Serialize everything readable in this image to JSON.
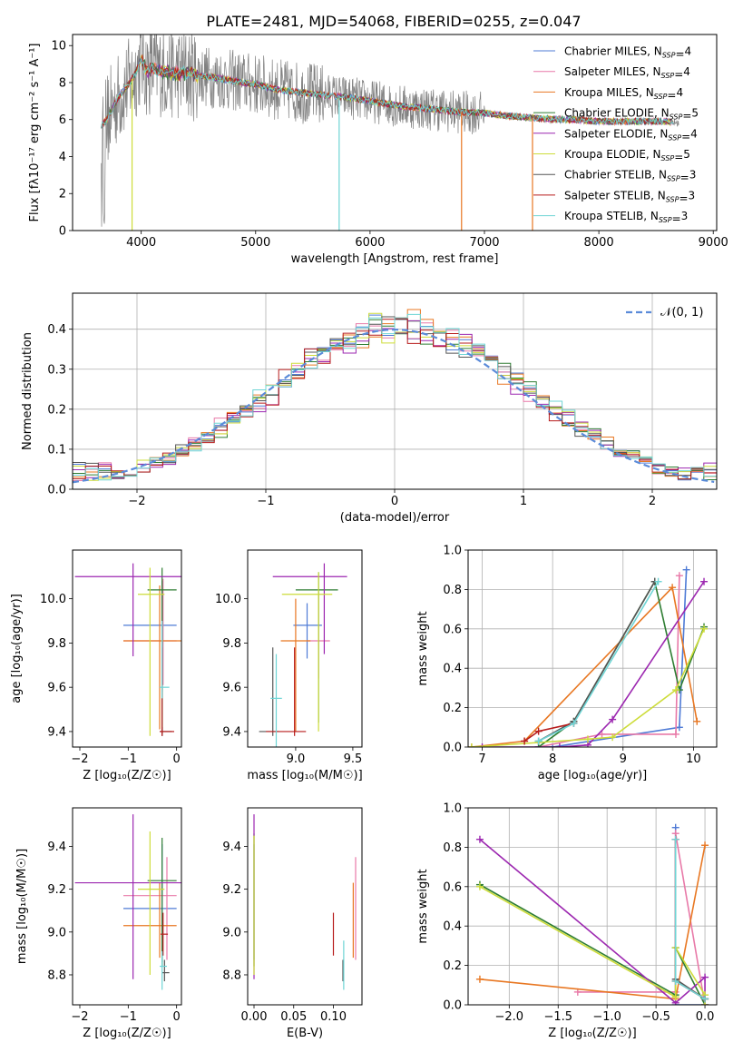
{
  "figure_title": "PLATE=2481, MJD=54068, FIBERID=0255, z=0.047",
  "colors": {
    "Chabrier MILES": "#4f7bd6",
    "Salpeter MILES": "#e879a8",
    "Kroupa MILES": "#e87722",
    "Chabrier ELODIE": "#2e7d32",
    "Salpeter ELODIE": "#9c27b0",
    "Kroupa ELODIE": "#cddc39",
    "Chabrier STELIB": "#555555",
    "Salpeter STELIB": "#b71c1c",
    "Kroupa STELIB": "#6fd5d5",
    "data": "#808080",
    "normal": "#5b8bd9"
  },
  "chart_data": [
    {
      "id": "spectrum",
      "type": "line",
      "title": "PLATE=2481, MJD=54068, FIBERID=0255, z=0.047",
      "xlabel": "wavelength [Angstrom, rest frame]",
      "ylabel": "Flux [fλ10⁻¹⁷ erg cm⁻² s⁻¹ A⁻¹]",
      "xlim": [
        3400,
        9030
      ],
      "ylim": [
        0,
        10.6
      ],
      "xticks": [
        4000,
        5000,
        6000,
        7000,
        8000,
        9000
      ],
      "yticks": [
        0,
        2,
        4,
        6,
        8,
        10
      ],
      "legend": [
        {
          "label": "Chabrier MILES",
          "nssp": "4"
        },
        {
          "label": "Salpeter MILES",
          "nssp": "4"
        },
        {
          "label": "Kroupa MILES",
          "nssp": "4"
        },
        {
          "label": "Chabrier ELODIE",
          "nssp": "5"
        },
        {
          "label": "Salpeter ELODIE",
          "nssp": "4"
        },
        {
          "label": "Kroupa ELODIE",
          "nssp": "5"
        },
        {
          "label": "Chabrier STELIB",
          "nssp": "3"
        },
        {
          "label": "Salpeter STELIB",
          "nssp": "3"
        },
        {
          "label": "Kroupa STELIB",
          "nssp": "3"
        }
      ],
      "legend_loc": "upper right",
      "continuum": {
        "wavelength": [
          3650,
          3700,
          3800,
          3900,
          3950,
          4000,
          4050,
          4100,
          4200,
          4300,
          4400,
          4500,
          4700,
          5000,
          5200,
          5500,
          5800,
          6000,
          6300,
          6500,
          6800,
          7000,
          7200,
          7400,
          7600,
          7800,
          8000,
          8200,
          8400,
          8600,
          8700
        ],
        "flux": [
          5.7,
          6.0,
          7.2,
          8.0,
          8.5,
          9.3,
          8.6,
          8.8,
          8.6,
          8.5,
          8.5,
          8.4,
          8.2,
          7.9,
          7.6,
          7.4,
          7.2,
          7.0,
          6.7,
          6.6,
          6.4,
          6.35,
          6.2,
          6.1,
          6.0,
          6.0,
          5.9,
          5.9,
          5.9,
          5.9,
          5.8
        ]
      },
      "data_noise_amplitude": 1.7,
      "model_dropouts": [
        {
          "wavelength": 3920,
          "model": "Kroupa ELODIE"
        },
        {
          "wavelength": 5730,
          "model": "Kroupa STELIB"
        },
        {
          "wavelength": 6800,
          "model": "Kroupa MILES"
        },
        {
          "wavelength": 7420,
          "model": "Kroupa MILES"
        }
      ]
    },
    {
      "id": "residual-hist",
      "type": "line",
      "xlabel": "(data-model)/error",
      "ylabel": "Normed distribution",
      "xlim": [
        -2.5,
        2.5
      ],
      "ylim": [
        0,
        0.49
      ],
      "xticks": [
        -2,
        -1,
        0,
        1,
        2
      ],
      "yticks": [
        0.0,
        0.1,
        0.2,
        0.3,
        0.4
      ],
      "bin_width": 0.1,
      "bin_start": -2.5,
      "normal_label": "𝒩(0, 1)",
      "legend_loc": "upper right",
      "grid": true
    },
    {
      "id": "age-vs-Z",
      "type": "scatter",
      "xlabel": "Z [log₁₀(Z/Z☉)]",
      "ylabel": "age  [log₁₀(age/yr)]",
      "xlim": [
        -2.15,
        0.1
      ],
      "ylim": [
        9.33,
        10.22
      ],
      "xticks": [
        -2,
        -1,
        0
      ],
      "yticks": [
        9.4,
        9.6,
        9.8,
        10.0
      ],
      "points": [
        {
          "model": "Chabrier MILES",
          "x": -0.3,
          "xerr": [
            0.8,
            0.3
          ],
          "y": 9.88,
          "yerr": [
            0.3,
            0.2
          ]
        },
        {
          "model": "Salpeter MILES",
          "x": -0.28,
          "xerr": [
            0.82,
            0.28
          ],
          "y": 9.81,
          "yerr": [
            0.2,
            0.28
          ]
        },
        {
          "model": "Kroupa MILES",
          "x": -0.35,
          "xerr": [
            0.75,
            0.45
          ],
          "y": 9.81,
          "yerr": [
            0.4,
            0.25
          ]
        },
        {
          "model": "Chabrier ELODIE",
          "x": -0.3,
          "xerr": [
            0.3,
            0.3
          ],
          "y": 10.04,
          "yerr": [
            0.65,
            0.1
          ]
        },
        {
          "model": "Salpeter ELODIE",
          "x": -0.9,
          "xerr": [
            1.2,
            1.9
          ],
          "y": 10.1,
          "yerr": [
            0.36,
            0.06
          ]
        },
        {
          "model": "Kroupa ELODIE",
          "x": -0.55,
          "xerr": [
            0.25,
            0.3
          ],
          "y": 10.02,
          "yerr": [
            0.64,
            0.12
          ]
        },
        {
          "model": "Chabrier STELIB",
          "x": -0.3,
          "xerr": [
            0.05,
            0.2
          ],
          "y": 9.4,
          "yerr": [
            0.02,
            0.02
          ]
        },
        {
          "model": "Salpeter STELIB",
          "x": -0.3,
          "xerr": [
            0.05,
            0.25
          ],
          "y": 9.4,
          "yerr": [
            0.02,
            0.38
          ]
        },
        {
          "model": "Kroupa STELIB",
          "x": -0.3,
          "xerr": [
            0.05,
            0.15
          ],
          "y": 9.6,
          "yerr": [
            0.05,
            0.3
          ]
        }
      ]
    },
    {
      "id": "age-vs-mass",
      "type": "scatter",
      "xlabel": "mass [log₁₀(M/M☉)]",
      "ylabel": "",
      "xlim": [
        8.58,
        9.58
      ],
      "ylim": [
        9.33,
        10.22
      ],
      "xticks": [
        9.0,
        9.5
      ],
      "yticks": [
        9.4,
        9.6,
        9.8,
        10.0
      ],
      "points": [
        {
          "model": "Chabrier MILES",
          "x": 9.1,
          "xerr": [
            0.12,
            0.13
          ],
          "y": 9.88,
          "yerr": [
            0.15,
            0.1
          ]
        },
        {
          "model": "Salpeter MILES",
          "x": 9.2,
          "xerr": [
            0.1,
            0.1
          ],
          "y": 9.81,
          "yerr": [
            0.17,
            0.22
          ]
        },
        {
          "model": "Kroupa MILES",
          "x": 9.0,
          "xerr": [
            0.13,
            0.13
          ],
          "y": 9.81,
          "yerr": [
            0.41,
            0.19
          ]
        },
        {
          "model": "Chabrier ELODIE",
          "x": 9.2,
          "xerr": [
            0.2,
            0.17
          ],
          "y": 10.04,
          "yerr": [
            0.6,
            0.08
          ]
        },
        {
          "model": "Salpeter ELODIE",
          "x": 9.25,
          "xerr": [
            0.45,
            0.2
          ],
          "y": 10.1,
          "yerr": [
            0.35,
            0.06
          ]
        },
        {
          "model": "Kroupa ELODIE",
          "x": 9.2,
          "xerr": [
            0.32,
            0.12
          ],
          "y": 10.02,
          "yerr": [
            0.62,
            0.1
          ]
        },
        {
          "model": "Chabrier STELIB",
          "x": 8.8,
          "xerr": [
            0.12,
            0.05
          ],
          "y": 9.4,
          "yerr": [
            0.02,
            0.38
          ]
        },
        {
          "model": "Salpeter STELIB",
          "x": 8.99,
          "xerr": [
            0.25,
            0.1
          ],
          "y": 9.4,
          "yerr": [
            0.02,
            0.38
          ]
        },
        {
          "model": "Kroupa STELIB",
          "x": 8.83,
          "xerr": [
            0.05,
            0.05
          ],
          "y": 9.55,
          "yerr": [
            0.25,
            0.2
          ]
        }
      ]
    },
    {
      "id": "mass-weight-vs-age",
      "type": "line",
      "xlabel": "age  [log₁₀(age/yr)]",
      "ylabel": "mass weight",
      "xlim": [
        6.8,
        10.33
      ],
      "ylim": [
        0,
        1
      ],
      "xticks": [
        7,
        8,
        9,
        10
      ],
      "yticks": [
        0.0,
        0.2,
        0.4,
        0.6,
        0.8,
        1.0
      ],
      "grid": true,
      "series": [
        {
          "model": "Chabrier MILES",
          "x": [
            7.8,
            8.0,
            9.8,
            9.9
          ],
          "y": [
            0.0,
            0.0,
            0.1,
            0.9
          ]
        },
        {
          "model": "Salpeter MILES",
          "x": [
            7.8,
            8.7,
            9.75,
            9.8
          ],
          "y": [
            0.0,
            0.065,
            0.065,
            0.87
          ]
        },
        {
          "model": "Kroupa MILES",
          "x": [
            6.85,
            7.6,
            9.7,
            10.05
          ],
          "y": [
            0.0,
            0.03,
            0.81,
            0.13
          ]
        },
        {
          "model": "Chabrier ELODIE",
          "x": [
            7.8,
            8.3,
            9.45,
            9.8,
            10.15
          ],
          "y": [
            0.0,
            0.13,
            0.84,
            0.29,
            0.61
          ]
        },
        {
          "model": "Salpeter ELODIE",
          "x": [
            7.0,
            8.1,
            8.5,
            8.85,
            10.15
          ],
          "y": [
            0.0,
            0.0,
            0.01,
            0.14,
            0.84
          ]
        },
        {
          "model": "Kroupa ELODIE",
          "x": [
            6.85,
            8.5,
            8.85,
            9.75,
            10.15
          ],
          "y": [
            0.0,
            0.04,
            0.05,
            0.29,
            0.6
          ]
        },
        {
          "model": "Chabrier STELIB",
          "x": [
            7.8,
            8.3,
            9.45
          ],
          "y": [
            0.03,
            0.13,
            0.84
          ]
        },
        {
          "model": "Salpeter STELIB",
          "x": [
            7.6,
            7.8,
            8.3
          ],
          "y": [
            0.03,
            0.08,
            0.12
          ]
        },
        {
          "model": "Kroupa STELIB",
          "x": [
            7.8,
            8.3,
            9.5
          ],
          "y": [
            0.03,
            0.12,
            0.84
          ]
        }
      ]
    },
    {
      "id": "mass-vs-Z",
      "type": "scatter",
      "xlabel": "Z [log₁₀(Z/Z☉)]",
      "ylabel": "mass [log₁₀(M/M☉)]",
      "xlim": [
        -2.15,
        0.1
      ],
      "ylim": [
        8.66,
        9.58
      ],
      "xticks": [
        -2,
        -1,
        0
      ],
      "yticks": [
        8.8,
        9.0,
        9.2,
        9.4
      ],
      "points": [
        {
          "model": "Chabrier MILES",
          "x": -0.3,
          "xerr": [
            0.8,
            0.3
          ],
          "y": 9.11,
          "yerr": [
            0.25,
            0.3
          ]
        },
        {
          "model": "Salpeter MILES",
          "x": -0.2,
          "xerr": [
            0.9,
            0.2
          ],
          "y": 9.17,
          "yerr": [
            0.3,
            0.18
          ]
        },
        {
          "model": "Kroupa MILES",
          "x": -0.35,
          "xerr": [
            0.75,
            0.35
          ],
          "y": 9.03,
          "yerr": [
            0.15,
            0.2
          ]
        },
        {
          "model": "Chabrier ELODIE",
          "x": -0.3,
          "xerr": [
            0.3,
            0.3
          ],
          "y": 9.24,
          "yerr": [
            0.4,
            0.2
          ]
        },
        {
          "model": "Salpeter ELODIE",
          "x": -0.9,
          "xerr": [
            1.2,
            1.9
          ],
          "y": 9.23,
          "yerr": [
            0.45,
            0.32
          ]
        },
        {
          "model": "Kroupa ELODIE",
          "x": -0.55,
          "xerr": [
            0.25,
            0.3
          ],
          "y": 9.2,
          "yerr": [
            0.4,
            0.27
          ]
        },
        {
          "model": "Chabrier STELIB",
          "x": -0.25,
          "xerr": [
            0.05,
            0.1
          ],
          "y": 8.81,
          "yerr": [
            0.04,
            0.06
          ]
        },
        {
          "model": "Salpeter STELIB",
          "x": -0.28,
          "xerr": [
            0.05,
            0.1
          ],
          "y": 8.99,
          "yerr": [
            0.1,
            0.1
          ]
        },
        {
          "model": "Kroupa STELIB",
          "x": -0.3,
          "xerr": [
            0.05,
            0.1
          ],
          "y": 8.84,
          "yerr": [
            0.11,
            0.07
          ]
        }
      ]
    },
    {
      "id": "mass-vs-ebv",
      "type": "scatter",
      "xlabel": "E(B-V)",
      "ylabel": "",
      "xlim": [
        -0.008,
        0.136
      ],
      "ylim": [
        8.66,
        9.58
      ],
      "xticks": [
        0.0,
        0.05,
        0.1
      ],
      "yticks": [
        8.8,
        9.0,
        9.2,
        9.4
      ],
      "points": [
        {
          "model": "Chabrier MILES",
          "x": 0.0,
          "xerr": [
            0,
            0
          ],
          "y": 9.11,
          "yerr": [
            0.24,
            0.3
          ]
        },
        {
          "model": "Salpeter MILES",
          "x": 0.128,
          "xerr": [
            0,
            0
          ],
          "y": 9.11,
          "yerr": [
            0.24,
            0.24
          ]
        },
        {
          "model": "Kroupa MILES",
          "x": 0.125,
          "xerr": [
            0,
            0
          ],
          "y": 9.03,
          "yerr": [
            0.15,
            0.2
          ]
        },
        {
          "model": "Chabrier ELODIE",
          "x": 0.0,
          "xerr": [
            0,
            0
          ],
          "y": 9.24,
          "yerr": [
            0.4,
            0.22
          ]
        },
        {
          "model": "Salpeter ELODIE",
          "x": 0.0,
          "xerr": [
            0,
            0
          ],
          "y": 9.23,
          "yerr": [
            0.45,
            0.32
          ]
        },
        {
          "model": "Kroupa ELODIE",
          "x": 0.0,
          "xerr": [
            0,
            0
          ],
          "y": 9.2,
          "yerr": [
            0.4,
            0.25
          ]
        },
        {
          "model": "Chabrier STELIB",
          "x": 0.112,
          "xerr": [
            0,
            0
          ],
          "y": 8.81,
          "yerr": [
            0.04,
            0.06
          ]
        },
        {
          "model": "Salpeter STELIB",
          "x": 0.1,
          "xerr": [
            0,
            0
          ],
          "y": 8.99,
          "yerr": [
            0.1,
            0.1
          ]
        },
        {
          "model": "Kroupa STELIB",
          "x": 0.113,
          "xerr": [
            0,
            0
          ],
          "y": 8.84,
          "yerr": [
            0.11,
            0.12
          ]
        }
      ]
    },
    {
      "id": "mass-weight-vs-Z",
      "type": "line",
      "xlabel": "Z [log₁₀(Z/Z☉)]",
      "ylabel": "mass weight",
      "xlim": [
        -2.42,
        0.12
      ],
      "ylim": [
        0,
        1
      ],
      "xticks": [
        -2.0,
        -1.5,
        -1.0,
        -0.5,
        0.0
      ],
      "yticks": [
        0.0,
        0.2,
        0.4,
        0.6,
        0.8,
        1.0
      ],
      "grid": true,
      "series": [
        {
          "model": "Chabrier MILES",
          "x": [
            -0.3,
            -0.3,
            0.0
          ],
          "y": [
            0.9,
            0.0,
            0.0
          ]
        },
        {
          "model": "Salpeter MILES",
          "x": [
            -1.3,
            -0.3,
            -0.3,
            0.0
          ],
          "y": [
            0.065,
            0.065,
            0.87,
            0.0
          ]
        },
        {
          "model": "Kroupa MILES",
          "x": [
            -2.3,
            -0.3,
            0.0
          ],
          "y": [
            0.13,
            0.03,
            0.81
          ]
        },
        {
          "model": "Chabrier ELODIE",
          "x": [
            -2.3,
            -0.3,
            -0.3,
            0.0,
            0.0
          ],
          "y": [
            0.61,
            0.05,
            0.29,
            0.0,
            0.03
          ]
        },
        {
          "model": "Salpeter ELODIE",
          "x": [
            -2.3,
            -0.3,
            0.0,
            0.0
          ],
          "y": [
            0.84,
            0.01,
            0.14,
            0.0
          ]
        },
        {
          "model": "Kroupa ELODIE",
          "x": [
            -2.3,
            -0.3,
            -0.3,
            0.0,
            0.0
          ],
          "y": [
            0.6,
            0.04,
            0.29,
            0.05,
            0.0
          ]
        },
        {
          "model": "Chabrier STELIB",
          "x": [
            -0.3,
            -0.3,
            0.0
          ],
          "y": [
            0.84,
            0.13,
            0.03
          ]
        },
        {
          "model": "Salpeter STELIB",
          "x": [
            -0.3,
            -0.3,
            0.0
          ],
          "y": [
            0.84,
            0.12,
            0.03
          ]
        },
        {
          "model": "Kroupa STELIB",
          "x": [
            -0.3,
            -0.3,
            0.0
          ],
          "y": [
            0.84,
            0.12,
            0.03
          ]
        }
      ]
    }
  ]
}
